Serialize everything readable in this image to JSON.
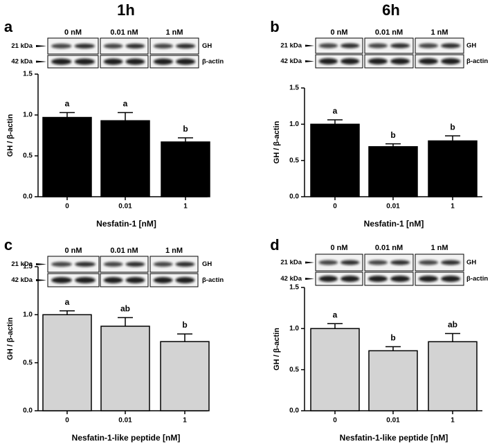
{
  "columns": [
    "1h",
    "6h"
  ],
  "chart_data": [
    {
      "type": "bar",
      "panel": "a",
      "categories": [
        "0",
        "0.01",
        "1"
      ],
      "values": [
        0.97,
        0.93,
        0.67
      ],
      "errors": [
        0.06,
        0.1,
        0.05
      ],
      "letters": [
        "a",
        "a",
        "b"
      ],
      "color": "#000000",
      "x_label": "Nesfatin-1 [nM]",
      "y_label": "GH / β-actin",
      "ylim": [
        0,
        1.5
      ],
      "yticks": [
        {
          "value": 0,
          "label": "0.0"
        },
        {
          "value": 0.5,
          "label": "0.5"
        },
        {
          "value": 1,
          "label": "1.0"
        },
        {
          "value": 1.5,
          "label": "1.5"
        }
      ],
      "blot": {
        "lanes": [
          "0 nM",
          "0.01 nM",
          "1 nM"
        ],
        "markers": [
          "21 kDa",
          "42 kDa"
        ],
        "bands": [
          "GH",
          "β-actin"
        ]
      }
    },
    {
      "type": "bar",
      "panel": "b",
      "categories": [
        "0",
        "0.01",
        "1"
      ],
      "values": [
        1.0,
        0.69,
        0.77
      ],
      "errors": [
        0.06,
        0.04,
        0.07
      ],
      "letters": [
        "a",
        "b",
        "b"
      ],
      "color": "#000000",
      "x_label": "Nesfatin-1 [nM]",
      "y_label": "GH / β-actin",
      "ylim": [
        0,
        1.5
      ],
      "yticks": [
        {
          "value": 0,
          "label": "0.0"
        },
        {
          "value": 0.5,
          "label": "0.5"
        },
        {
          "value": 1,
          "label": "1.0"
        },
        {
          "value": 1.5,
          "label": "1.5"
        }
      ],
      "blot": {
        "lanes": [
          "0 nM",
          "0.01 nM",
          "1 nM"
        ],
        "markers": [
          "21 kDa",
          "42 kDa"
        ],
        "bands": [
          "GH",
          "β-actin"
        ]
      }
    },
    {
      "type": "bar",
      "panel": "c",
      "categories": [
        "0",
        "0.01",
        "1"
      ],
      "values": [
        1.0,
        0.88,
        0.72
      ],
      "errors": [
        0.04,
        0.09,
        0.08
      ],
      "letters": [
        "a",
        "ab",
        "b"
      ],
      "color": "#d3d3d3",
      "x_label": "Nesfatin-1-like peptide [nM]",
      "y_label": "GH / β-actin",
      "ylim": [
        0,
        1.5
      ],
      "yticks": [
        {
          "value": 0,
          "label": "0.0"
        },
        {
          "value": 0.5,
          "label": "0.5"
        },
        {
          "value": 1,
          "label": "1.0"
        },
        {
          "value": 1.5,
          "label": "1.5"
        }
      ],
      "blot": {
        "lanes": [
          "0 nM",
          "0.01 nM",
          "1 nM"
        ],
        "markers": [
          "21 kDa",
          "42 kDa"
        ],
        "bands": [
          "GH",
          "β-actin"
        ]
      }
    },
    {
      "type": "bar",
      "panel": "d",
      "categories": [
        "0",
        "0.01",
        "1"
      ],
      "values": [
        1.0,
        0.73,
        0.84
      ],
      "errors": [
        0.06,
        0.05,
        0.1
      ],
      "letters": [
        "a",
        "b",
        "ab"
      ],
      "color": "#d3d3d3",
      "x_label": "Nesfatin-1-like peptide [nM]",
      "y_label": "GH / β-actin",
      "ylim": [
        0,
        1.5
      ],
      "yticks": [
        {
          "value": 0,
          "label": "0.0"
        },
        {
          "value": 0.5,
          "label": "0.5"
        },
        {
          "value": 1,
          "label": "1.0"
        },
        {
          "value": 1.5,
          "label": "1.5"
        }
      ],
      "blot": {
        "lanes": [
          "0 nM",
          "0.01 nM",
          "1 nM"
        ],
        "markers": [
          "21 kDa",
          "42 kDa"
        ],
        "bands": [
          "GH",
          "β-actin"
        ]
      }
    }
  ]
}
